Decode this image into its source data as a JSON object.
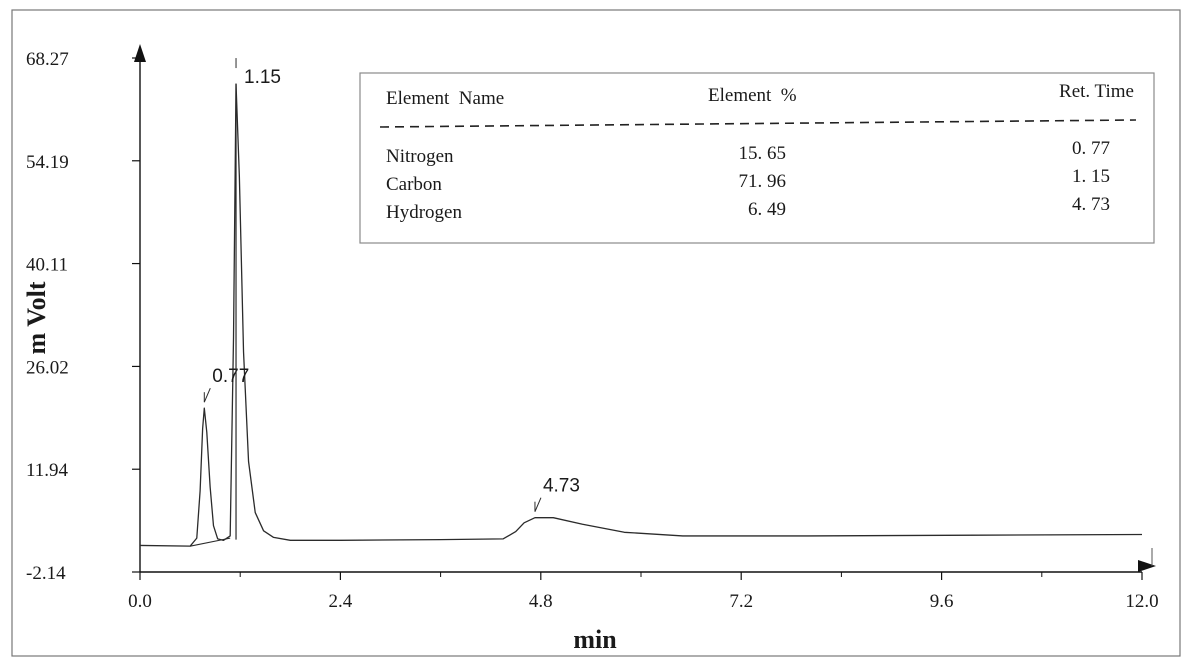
{
  "chart_data": {
    "type": "line",
    "xlabel": "min",
    "ylabel": "m Volt",
    "xlim": [
      0.0,
      12.0
    ],
    "ylim": [
      -2.14,
      68.27
    ],
    "x_ticks": [
      "0.0",
      "2.4",
      "4.8",
      "7.2",
      "9.6",
      "12.0"
    ],
    "y_ticks": [
      "-2.14",
      "11.94",
      "26.02",
      "40.11",
      "54.19",
      "68.27"
    ],
    "grid": false,
    "series": [
      {
        "points": [
          [
            0.0,
            1.5
          ],
          [
            0.6,
            1.4
          ],
          [
            0.68,
            2.5
          ],
          [
            0.72,
            9.0
          ],
          [
            0.75,
            17.5
          ],
          [
            0.77,
            20.3
          ],
          [
            0.8,
            17.0
          ],
          [
            0.84,
            9.5
          ],
          [
            0.88,
            4.2
          ],
          [
            0.93,
            2.4
          ],
          [
            1.0,
            2.2
          ],
          [
            1.08,
            2.8
          ],
          [
            1.12,
            30.0
          ],
          [
            1.15,
            64.7
          ],
          [
            1.19,
            52.0
          ],
          [
            1.24,
            28.0
          ],
          [
            1.3,
            13.0
          ],
          [
            1.38,
            6.0
          ],
          [
            1.48,
            3.5
          ],
          [
            1.6,
            2.6
          ],
          [
            1.8,
            2.2
          ],
          [
            2.4,
            2.2
          ],
          [
            3.6,
            2.3
          ],
          [
            4.35,
            2.4
          ],
          [
            4.5,
            3.4
          ],
          [
            4.6,
            4.6
          ],
          [
            4.73,
            5.3
          ],
          [
            4.95,
            5.3
          ],
          [
            5.3,
            4.4
          ],
          [
            5.8,
            3.3
          ],
          [
            6.5,
            2.8
          ],
          [
            8.0,
            2.8
          ],
          [
            10.0,
            2.9
          ],
          [
            12.0,
            3.0
          ]
        ]
      }
    ],
    "peaks": [
      {
        "label": "0.77",
        "x": 0.77,
        "y": 20.3
      },
      {
        "label": "1.15",
        "x": 1.15,
        "y": 64.7
      },
      {
        "label": "4.73",
        "x": 4.73,
        "y": 5.3
      }
    ],
    "baseline_segment": [
      [
        0.6,
        1.4
      ],
      [
        1.08,
        2.5
      ]
    ],
    "table": {
      "headers": [
        "Element  Name",
        "Element  %",
        "Ret. Time"
      ],
      "rows": [
        [
          "Nitrogen",
          "15. 65",
          "0. 77"
        ],
        [
          "Carbon",
          "71. 96",
          "1. 15"
        ],
        [
          "Hydrogen",
          "6. 49",
          "4. 73"
        ]
      ]
    }
  },
  "colors": {
    "line": "#2b2b2b",
    "axis": "#111111",
    "text": "#1a1a1a",
    "border": "#777777"
  }
}
